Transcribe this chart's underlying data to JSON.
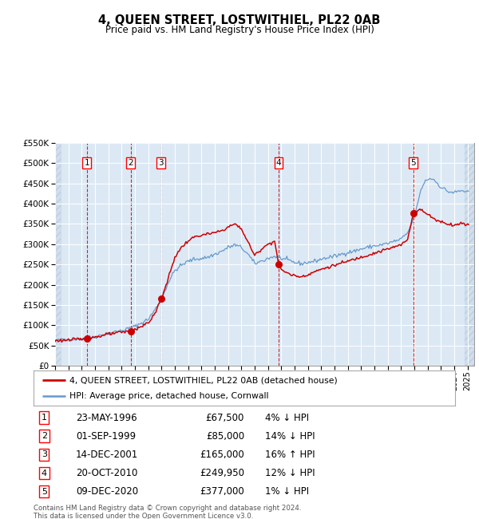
{
  "title": "4, QUEEN STREET, LOSTWITHIEL, PL22 0AB",
  "subtitle": "Price paid vs. HM Land Registry's House Price Index (HPI)",
  "legend_line1": "4, QUEEN STREET, LOSTWITHIEL, PL22 0AB (detached house)",
  "legend_line2": "HPI: Average price, detached house, Cornwall",
  "footer_line1": "Contains HM Land Registry data © Crown copyright and database right 2024.",
  "footer_line2": "This data is licensed under the Open Government Licence v3.0.",
  "sale_dates_display": [
    "23-MAY-1996",
    "01-SEP-1999",
    "14-DEC-2001",
    "20-OCT-2010",
    "09-DEC-2020"
  ],
  "sale_prices_display": [
    "£67,500",
    "£85,000",
    "£165,000",
    "£249,950",
    "£377,000"
  ],
  "sale_pct_display": [
    "4% ↓ HPI",
    "14% ↓ HPI",
    "16% ↑ HPI",
    "12% ↓ HPI",
    "1% ↓ HPI"
  ],
  "sale_times": [
    1996.38,
    1999.67,
    2001.95,
    2010.8,
    2020.92
  ],
  "sale_prices": [
    67500,
    85000,
    165000,
    249950,
    377000
  ],
  "hpi_color": "#6699cc",
  "price_color": "#cc0000",
  "dot_color": "#cc0000",
  "vline_color": "#cc0000",
  "bg_color": "#dce9f5",
  "grid_color": "#ffffff",
  "ylim_min": 0,
  "ylim_max": 550000,
  "ytick_step": 50000,
  "x_start_year": 1994,
  "x_end_year": 2026
}
